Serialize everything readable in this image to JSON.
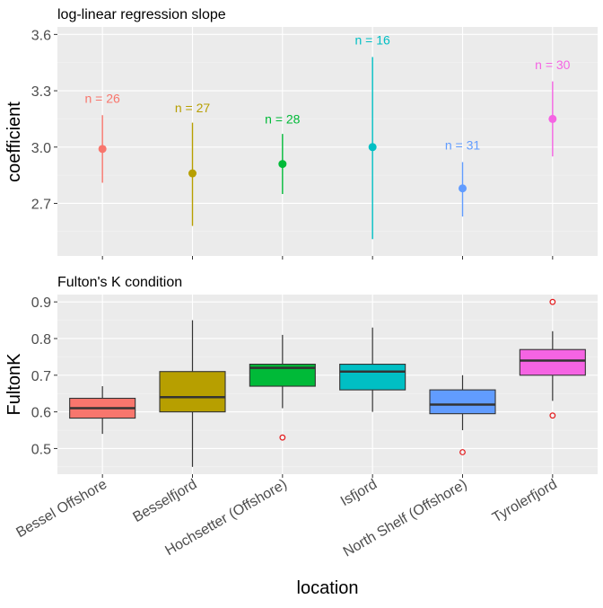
{
  "colors": {
    "panel_bg": "#EBEBEB",
    "grid_major": "#FFFFFF",
    "grid_minor": "#F4F4F4",
    "tick_text": "#4D4D4D",
    "axis_title": "#000000",
    "outlier": "#E41A1C"
  },
  "chart_data": [
    {
      "type": "scatter",
      "subtitle": "log-linear regression slope",
      "xlabel": "",
      "ylabel": "coefficient",
      "categories": [
        "Bessel Offshore",
        "Besselfjord",
        "Hochsetter (Offshore)",
        "Isfjord",
        "North Shelf (Offshore)",
        "Tyrolerfjord"
      ],
      "ylim": [
        2.42,
        3.64
      ],
      "yticks": [
        2.7,
        3.0,
        3.3,
        3.6
      ],
      "ytick_labels": [
        "2.7",
        "3.0",
        "3.3",
        "3.6"
      ],
      "grid": true,
      "points": [
        {
          "category": "Bessel Offshore",
          "estimate": 2.99,
          "lower": 2.81,
          "upper": 3.17,
          "n_label": "n = 26",
          "n_y": 3.26,
          "color": "#F8766D"
        },
        {
          "category": "Besselfjord",
          "estimate": 2.86,
          "lower": 2.58,
          "upper": 3.13,
          "n_label": "n = 27",
          "n_y": 3.21,
          "color": "#B79F00"
        },
        {
          "category": "Hochsetter (Offshore)",
          "estimate": 2.91,
          "lower": 2.75,
          "upper": 3.07,
          "n_label": "n = 28",
          "n_y": 3.15,
          "color": "#00BA38"
        },
        {
          "category": "Isfjord",
          "estimate": 3.0,
          "lower": 2.51,
          "upper": 3.48,
          "n_label": "n = 16",
          "n_y": 3.57,
          "color": "#00BFC4"
        },
        {
          "category": "North Shelf (Offshore)",
          "estimate": 2.78,
          "lower": 2.63,
          "upper": 2.92,
          "n_label": "n = 31",
          "n_y": 3.01,
          "color": "#619CFF"
        },
        {
          "category": "Tyrolerfjord",
          "estimate": 3.15,
          "lower": 2.95,
          "upper": 3.35,
          "n_label": "n = 30",
          "n_y": 3.44,
          "color": "#F564E3"
        }
      ]
    },
    {
      "type": "boxplot",
      "subtitle": "Fulton's K condition",
      "xlabel": "location",
      "ylabel": "FultonK",
      "categories": [
        "Bessel Offshore",
        "Besselfjord",
        "Hochsetter (Offshore)",
        "Isfjord",
        "North Shelf (Offshore)",
        "Tyrolerfjord"
      ],
      "ylim": [
        0.43,
        0.92
      ],
      "yticks": [
        0.5,
        0.6,
        0.7,
        0.8,
        0.9
      ],
      "ytick_labels": [
        "0.5",
        "0.6",
        "0.7",
        "0.8",
        "0.9"
      ],
      "grid": true,
      "boxes": [
        {
          "category": "Bessel Offshore",
          "whisker_low": 0.54,
          "q1": 0.583,
          "median": 0.61,
          "q3": 0.637,
          "whisker_high": 0.67,
          "outliers": [],
          "color": "#F8766D"
        },
        {
          "category": "Besselfjord",
          "whisker_low": 0.45,
          "q1": 0.6,
          "median": 0.64,
          "q3": 0.71,
          "whisker_high": 0.85,
          "outliers": [],
          "color": "#B79F00"
        },
        {
          "category": "Hochsetter (Offshore)",
          "whisker_low": 0.61,
          "q1": 0.67,
          "median": 0.72,
          "q3": 0.73,
          "whisker_high": 0.81,
          "outliers": [
            0.53
          ],
          "color": "#00BA38"
        },
        {
          "category": "Isfjord",
          "whisker_low": 0.6,
          "q1": 0.66,
          "median": 0.71,
          "q3": 0.73,
          "whisker_high": 0.83,
          "outliers": [],
          "color": "#00BFC4"
        },
        {
          "category": "North Shelf (Offshore)",
          "whisker_low": 0.55,
          "q1": 0.595,
          "median": 0.62,
          "q3": 0.66,
          "whisker_high": 0.7,
          "outliers": [
            0.49
          ],
          "color": "#619CFF"
        },
        {
          "category": "Tyrolerfjord",
          "whisker_low": 0.63,
          "q1": 0.7,
          "median": 0.74,
          "q3": 0.77,
          "whisker_high": 0.82,
          "outliers": [
            0.59,
            0.9
          ],
          "color": "#F564E3"
        }
      ]
    }
  ]
}
